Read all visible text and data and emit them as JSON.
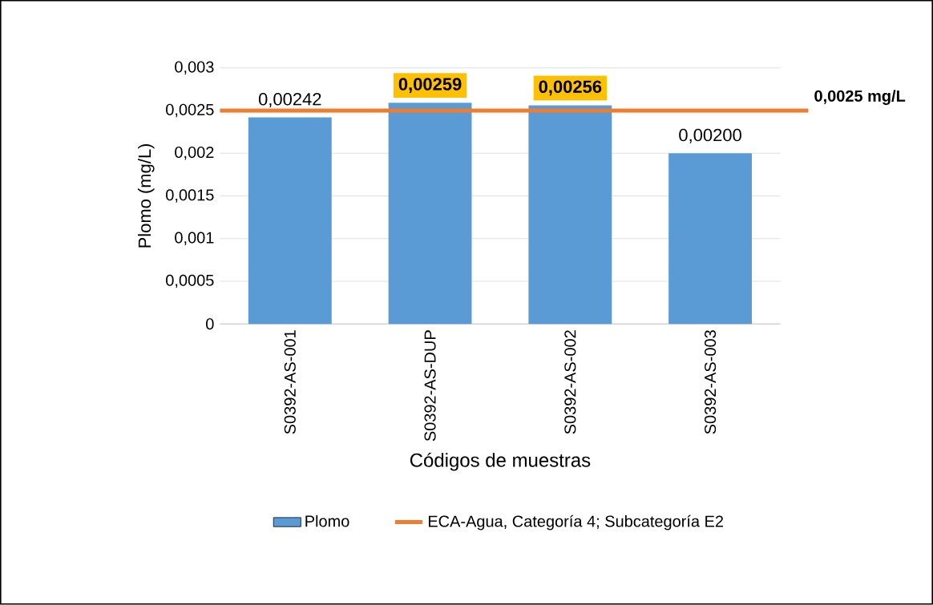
{
  "chart_data": {
    "type": "bar",
    "xlabel": "Códigos de muestras",
    "ylabel": "Plomo (mg/L)",
    "categories": [
      "S0392-AS-001",
      "S0392-AS-DUP",
      "S0392-AS-002",
      "S0392-AS-003"
    ],
    "series": [
      {
        "name": "Plomo",
        "color": "#5b9bd5",
        "values": [
          0.00242,
          0.00259,
          0.00256,
          0.002
        ],
        "value_labels": [
          "0,00242",
          "0,00259",
          "0,00256",
          "0,00200"
        ]
      }
    ],
    "ylim": [
      0,
      0.003
    ],
    "yticks": [
      {
        "value": 0,
        "label": "0"
      },
      {
        "value": 0.0005,
        "label": "0,0005"
      },
      {
        "value": 0.001,
        "label": "0,001"
      },
      {
        "value": 0.0015,
        "label": "0,0015"
      },
      {
        "value": 0.002,
        "label": "0,002"
      },
      {
        "value": 0.0025,
        "label": "0,0025"
      },
      {
        "value": 0.003,
        "label": "0,003"
      }
    ],
    "grid": "y",
    "legend": "bottom",
    "ref_lines": [
      {
        "axis": "y",
        "value": 0.0025,
        "label": "ECA-Agua, Categoría 4; Subcategoría E2",
        "color": "#ed7d31"
      }
    ],
    "annotations": [
      "0,0025 mg/L"
    ]
  }
}
